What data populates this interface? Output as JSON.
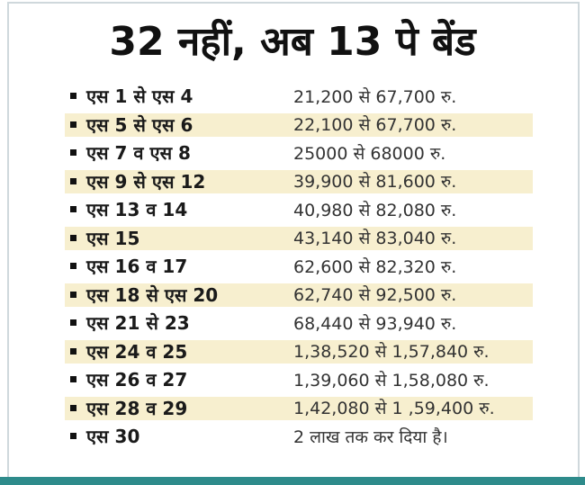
{
  "title": "32 नहीं, अब 13 पे बेंड",
  "rows": [
    {
      "label": "एस 1 से एस 4",
      "value": "21,200 से 67,700 रु.",
      "shaded": false
    },
    {
      "label": "एस 5 से एस 6",
      "value": "22,100 से 67,700 रु.",
      "shaded": true
    },
    {
      "label": "एस 7 व एस 8",
      "value": "25000 से 68000  रु.",
      "shaded": false
    },
    {
      "label": "एस 9 से एस 12",
      "value": "39,900 से 81,600 रु.",
      "shaded": true
    },
    {
      "label": "एस 13 व 14",
      "value": "40,980 से 82,080 रु.",
      "shaded": false
    },
    {
      "label": "एस 15",
      "value": "43,140 से 83,040 रु.",
      "shaded": true
    },
    {
      "label": "एस 16 व 17",
      "value": "62,600 से 82,320 रु.",
      "shaded": false
    },
    {
      "label": "एस 18 से एस 20",
      "value": "62,740 से 92,500 रु.",
      "shaded": true
    },
    {
      "label": "एस 21 से 23",
      "value": "68,440 से 93,940 रु.",
      "shaded": false
    },
    {
      "label": "एस 24 व 25",
      "value": "1,38,520 से 1,57,840 रु.",
      "shaded": true
    },
    {
      "label": "एस 26 व 27",
      "value": "1,39,060 से 1,58,080 रु.",
      "shaded": false
    },
    {
      "label": "एस 28 व 29",
      "value": "1,42,080 से 1 ,59,400 रु.",
      "shaded": true
    },
    {
      "label": "एस 30",
      "value": "2 लाख तक कर दिया है।",
      "shaded": false
    }
  ],
  "colors": {
    "shade": "#f7efcf",
    "bottom_rule": "#2e8b8b"
  }
}
